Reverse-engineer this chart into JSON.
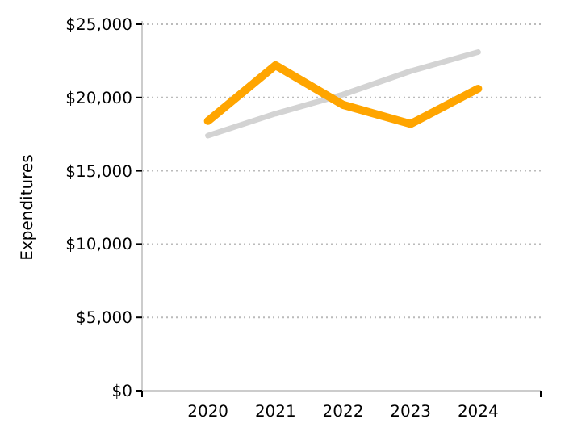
{
  "chart_data": {
    "type": "line",
    "ylabel": "Expenditures",
    "categories": [
      "2020",
      "2021",
      "2022",
      "2023",
      "2024"
    ],
    "series": [
      {
        "color": "#d3d3d3",
        "values": [
          17400,
          18900,
          20200,
          21800,
          23100
        ]
      },
      {
        "color": "#ffa500",
        "values": [
          18400,
          22200,
          19500,
          18200,
          20600
        ]
      }
    ],
    "ylim": [
      0,
      25000
    ],
    "yticks": [
      {
        "value": 0,
        "label": "$0"
      },
      {
        "value": 5000,
        "label": "$5,000"
      },
      {
        "value": 10000,
        "label": "$10,000"
      },
      {
        "value": 15000,
        "label": "$15,000"
      },
      {
        "value": 20000,
        "label": "$20,000"
      },
      {
        "value": 25000,
        "label": "$25,000"
      }
    ],
    "grid": "y"
  }
}
